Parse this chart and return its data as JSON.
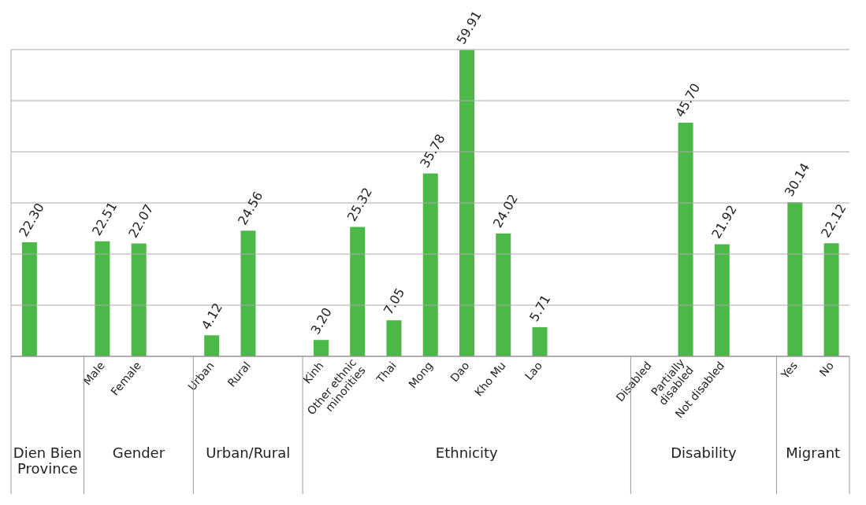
{
  "chart_data": {
    "type": "bar",
    "categories": [
      null,
      null,
      "Male",
      "Female",
      null,
      "Urban",
      "Rural",
      null,
      "Kinh",
      "Other ethnic minorities",
      "Thai",
      "Mong",
      "Dao",
      "Kho Mu",
      "Lao",
      null,
      null,
      "Disabled",
      "Partially disabled",
      "Not disabled",
      null,
      "Yes",
      "No"
    ],
    "values": [
      22.3,
      null,
      22.51,
      22.07,
      null,
      4.12,
      24.56,
      null,
      3.2,
      25.32,
      7.05,
      35.78,
      59.91,
      24.02,
      5.71,
      null,
      null,
      null,
      45.7,
      21.92,
      null,
      30.14,
      22.12
    ],
    "value_labels": [
      "22.30",
      null,
      "22.51",
      "22.07",
      null,
      "4.12",
      "24.56",
      null,
      "3.20",
      "25.32",
      "7.05",
      "35.78",
      "59.91",
      "24.02",
      "5.71",
      null,
      null,
      null,
      "45.70",
      "21.92",
      null,
      "30.14",
      "22.12"
    ],
    "color": "#4cb848",
    "ylim": [
      0,
      60
    ],
    "yticks": [
      {
        "value": 0,
        "label": null
      },
      {
        "value": 10,
        "label": null
      },
      {
        "value": 20,
        "label": null
      },
      {
        "value": 30,
        "label": null
      },
      {
        "value": 40,
        "label": null
      },
      {
        "value": 50,
        "label": null
      },
      {
        "value": 60,
        "label": null
      }
    ],
    "grid": "y",
    "tick_labels": "x",
    "annotations": [
      "Dien Bien Province",
      "Gender",
      "Urban/Rural",
      "Ethnicity",
      "Disability",
      "Migrant"
    ]
  }
}
